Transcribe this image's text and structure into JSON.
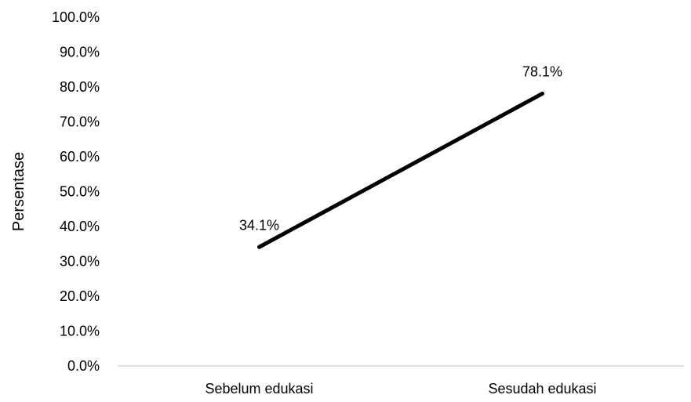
{
  "chart_data": {
    "type": "line",
    "categories": [
      "Sebelum edukasi",
      "Sesudah edukasi"
    ],
    "series": [
      {
        "values": [
          34.1,
          78.1
        ]
      }
    ],
    "data_labels": [
      "34.1%",
      "78.1%"
    ],
    "ylabel": "Persentase",
    "ylim": [
      0,
      100
    ],
    "ytick_labels": [
      "0.0%",
      "10.0%",
      "20.0%",
      "30.0%",
      "40.0%",
      "50.0%",
      "60.0%",
      "70.0%",
      "80.0%",
      "90.0%",
      "100.0%"
    ],
    "grid": false,
    "line_color": "#000000",
    "axis_color": "#d9d9d9"
  }
}
